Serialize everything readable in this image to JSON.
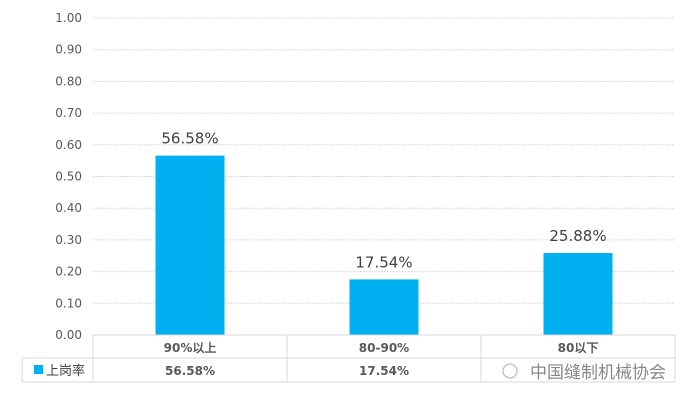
{
  "chart_data": {
    "type": "bar",
    "categories": [
      "90%以上",
      "80-90%",
      "80以下"
    ],
    "series": [
      {
        "name": "上岗率",
        "values": [
          0.5658,
          0.1754,
          0.2588
        ],
        "labels": [
          "56.58%",
          "17.54%",
          "25.88%"
        ]
      }
    ],
    "ylim": [
      0,
      1.0
    ],
    "yticks": [
      "0.00",
      "0.10",
      "0.20",
      "0.30",
      "0.40",
      "0.50",
      "0.60",
      "0.70",
      "0.80",
      "0.90",
      "1.00"
    ],
    "grid": true,
    "data_table": {
      "legend_label": "上岗率",
      "cells": [
        "56.58%",
        "17.54%",
        ""
      ]
    },
    "colors": {
      "bar": "#00B0F0",
      "grid": "#d0d0d0",
      "text": "#595959"
    }
  },
  "watermark": "中国缝制机械协会"
}
